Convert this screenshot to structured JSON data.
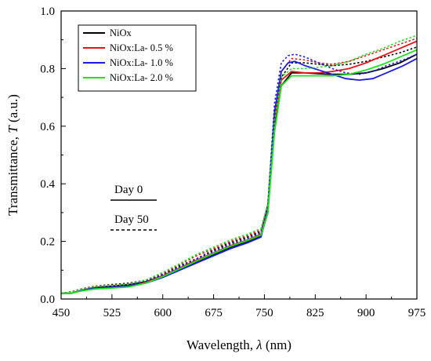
{
  "chart_data": {
    "type": "line",
    "xlabel_main": "Wavelength, ",
    "xlabel_symbol": "λ",
    "xlabel_unit": " (nm)",
    "ylabel_main": "Transmittance, ",
    "ylabel_symbol": "T",
    "ylabel_unit": " (a.u.)",
    "xlim": [
      450,
      975
    ],
    "ylim": [
      0.0,
      1.0
    ],
    "x_ticks": [
      "450",
      "525",
      "600",
      "675",
      "750",
      "825",
      "900",
      "975"
    ],
    "y_ticks": [
      "0.0",
      "0.2",
      "0.4",
      "0.6",
      "0.8",
      "1.0"
    ],
    "legend_position": "top-left",
    "line_styles": [
      {
        "label": "Day 0",
        "style": "solid"
      },
      {
        "label": "Day 50",
        "style": "dashed"
      }
    ],
    "series": [
      {
        "name": "NiOx",
        "color": "#000000",
        "day0": [
          [
            450,
            0.02
          ],
          [
            465,
            0.02
          ],
          [
            480,
            0.03
          ],
          [
            500,
            0.04
          ],
          [
            525,
            0.045
          ],
          [
            550,
            0.05
          ],
          [
            575,
            0.06
          ],
          [
            600,
            0.08
          ],
          [
            625,
            0.105
          ],
          [
            650,
            0.13
          ],
          [
            675,
            0.155
          ],
          [
            700,
            0.18
          ],
          [
            725,
            0.2
          ],
          [
            745,
            0.22
          ],
          [
            755,
            0.3
          ],
          [
            765,
            0.6
          ],
          [
            775,
            0.74
          ],
          [
            790,
            0.785
          ],
          [
            810,
            0.785
          ],
          [
            830,
            0.782
          ],
          [
            850,
            0.78
          ],
          [
            875,
            0.78
          ],
          [
            900,
            0.785
          ],
          [
            925,
            0.8
          ],
          [
            950,
            0.82
          ],
          [
            975,
            0.85
          ]
        ],
        "day50": [
          [
            450,
            0.02
          ],
          [
            465,
            0.025
          ],
          [
            480,
            0.035
          ],
          [
            500,
            0.045
          ],
          [
            525,
            0.05
          ],
          [
            550,
            0.055
          ],
          [
            575,
            0.065
          ],
          [
            600,
            0.085
          ],
          [
            625,
            0.115
          ],
          [
            650,
            0.14
          ],
          [
            675,
            0.17
          ],
          [
            700,
            0.195
          ],
          [
            725,
            0.215
          ],
          [
            745,
            0.235
          ],
          [
            755,
            0.32
          ],
          [
            765,
            0.63
          ],
          [
            775,
            0.77
          ],
          [
            790,
            0.82
          ],
          [
            810,
            0.82
          ],
          [
            830,
            0.815
          ],
          [
            850,
            0.81
          ],
          [
            875,
            0.815
          ],
          [
            900,
            0.825
          ],
          [
            925,
            0.84
          ],
          [
            950,
            0.855
          ],
          [
            975,
            0.875
          ]
        ]
      },
      {
        "name": "NiOx:La- 0.5 %",
        "color": "#e8141a",
        "day0": [
          [
            450,
            0.02
          ],
          [
            465,
            0.02
          ],
          [
            480,
            0.03
          ],
          [
            500,
            0.04
          ],
          [
            525,
            0.04
          ],
          [
            550,
            0.045
          ],
          [
            575,
            0.058
          ],
          [
            600,
            0.08
          ],
          [
            625,
            0.108
          ],
          [
            650,
            0.135
          ],
          [
            675,
            0.16
          ],
          [
            700,
            0.185
          ],
          [
            725,
            0.205
          ],
          [
            745,
            0.225
          ],
          [
            755,
            0.31
          ],
          [
            765,
            0.62
          ],
          [
            775,
            0.76
          ],
          [
            790,
            0.79
          ],
          [
            810,
            0.785
          ],
          [
            830,
            0.785
          ],
          [
            850,
            0.79
          ],
          [
            875,
            0.8
          ],
          [
            900,
            0.82
          ],
          [
            925,
            0.845
          ],
          [
            950,
            0.87
          ],
          [
            975,
            0.895
          ]
        ],
        "day50": [
          [
            450,
            0.02
          ],
          [
            465,
            0.025
          ],
          [
            480,
            0.035
          ],
          [
            500,
            0.045
          ],
          [
            525,
            0.048
          ],
          [
            550,
            0.052
          ],
          [
            575,
            0.065
          ],
          [
            600,
            0.09
          ],
          [
            625,
            0.12
          ],
          [
            650,
            0.15
          ],
          [
            675,
            0.175
          ],
          [
            700,
            0.2
          ],
          [
            725,
            0.22
          ],
          [
            745,
            0.24
          ],
          [
            755,
            0.33
          ],
          [
            765,
            0.65
          ],
          [
            775,
            0.79
          ],
          [
            790,
            0.835
          ],
          [
            810,
            0.83
          ],
          [
            830,
            0.82
          ],
          [
            850,
            0.815
          ],
          [
            875,
            0.825
          ],
          [
            900,
            0.845
          ],
          [
            925,
            0.865
          ],
          [
            950,
            0.885
          ],
          [
            975,
            0.905
          ]
        ]
      },
      {
        "name": "NiOx:La- 1.0 %",
        "color": "#1c1ce0",
        "day0": [
          [
            450,
            0.02
          ],
          [
            465,
            0.02
          ],
          [
            480,
            0.03
          ],
          [
            500,
            0.038
          ],
          [
            525,
            0.04
          ],
          [
            550,
            0.045
          ],
          [
            575,
            0.055
          ],
          [
            600,
            0.075
          ],
          [
            625,
            0.1
          ],
          [
            650,
            0.125
          ],
          [
            675,
            0.15
          ],
          [
            700,
            0.175
          ],
          [
            725,
            0.195
          ],
          [
            745,
            0.215
          ],
          [
            755,
            0.31
          ],
          [
            765,
            0.65
          ],
          [
            775,
            0.79
          ],
          [
            785,
            0.82
          ],
          [
            795,
            0.825
          ],
          [
            810,
            0.81
          ],
          [
            830,
            0.795
          ],
          [
            850,
            0.78
          ],
          [
            870,
            0.765
          ],
          [
            890,
            0.76
          ],
          [
            910,
            0.765
          ],
          [
            930,
            0.785
          ],
          [
            955,
            0.81
          ],
          [
            975,
            0.835
          ]
        ],
        "day50": [
          [
            450,
            0.02
          ],
          [
            465,
            0.022
          ],
          [
            480,
            0.032
          ],
          [
            500,
            0.042
          ],
          [
            525,
            0.045
          ],
          [
            550,
            0.05
          ],
          [
            575,
            0.062
          ],
          [
            600,
            0.085
          ],
          [
            625,
            0.112
          ],
          [
            650,
            0.14
          ],
          [
            675,
            0.165
          ],
          [
            700,
            0.19
          ],
          [
            725,
            0.21
          ],
          [
            745,
            0.23
          ],
          [
            755,
            0.33
          ],
          [
            765,
            0.68
          ],
          [
            775,
            0.82
          ],
          [
            785,
            0.845
          ],
          [
            795,
            0.85
          ],
          [
            810,
            0.84
          ],
          [
            830,
            0.82
          ],
          [
            850,
            0.8
          ],
          [
            870,
            0.785
          ],
          [
            890,
            0.78
          ],
          [
            910,
            0.79
          ],
          [
            930,
            0.81
          ],
          [
            955,
            0.83
          ],
          [
            975,
            0.85
          ]
        ]
      },
      {
        "name": "NiOx:La- 2.0 %",
        "color": "#1fe01f",
        "day0": [
          [
            450,
            0.02
          ],
          [
            465,
            0.02
          ],
          [
            480,
            0.028
          ],
          [
            500,
            0.035
          ],
          [
            525,
            0.038
          ],
          [
            550,
            0.042
          ],
          [
            575,
            0.055
          ],
          [
            600,
            0.078
          ],
          [
            625,
            0.105
          ],
          [
            650,
            0.132
          ],
          [
            675,
            0.158
          ],
          [
            700,
            0.183
          ],
          [
            725,
            0.203
          ],
          [
            745,
            0.222
          ],
          [
            755,
            0.3
          ],
          [
            765,
            0.58
          ],
          [
            775,
            0.74
          ],
          [
            790,
            0.775
          ],
          [
            810,
            0.775
          ],
          [
            830,
            0.775
          ],
          [
            850,
            0.775
          ],
          [
            875,
            0.78
          ],
          [
            900,
            0.795
          ],
          [
            925,
            0.815
          ],
          [
            950,
            0.84
          ],
          [
            975,
            0.865
          ]
        ],
        "day50": [
          [
            450,
            0.02
          ],
          [
            465,
            0.024
          ],
          [
            480,
            0.034
          ],
          [
            500,
            0.044
          ],
          [
            525,
            0.047
          ],
          [
            550,
            0.052
          ],
          [
            575,
            0.066
          ],
          [
            600,
            0.092
          ],
          [
            625,
            0.123
          ],
          [
            650,
            0.155
          ],
          [
            675,
            0.18
          ],
          [
            700,
            0.205
          ],
          [
            725,
            0.225
          ],
          [
            745,
            0.245
          ],
          [
            755,
            0.33
          ],
          [
            765,
            0.62
          ],
          [
            775,
            0.77
          ],
          [
            790,
            0.8
          ],
          [
            810,
            0.8
          ],
          [
            830,
            0.805
          ],
          [
            850,
            0.81
          ],
          [
            875,
            0.825
          ],
          [
            900,
            0.85
          ],
          [
            925,
            0.87
          ],
          [
            950,
            0.895
          ],
          [
            975,
            0.915
          ]
        ]
      }
    ]
  }
}
